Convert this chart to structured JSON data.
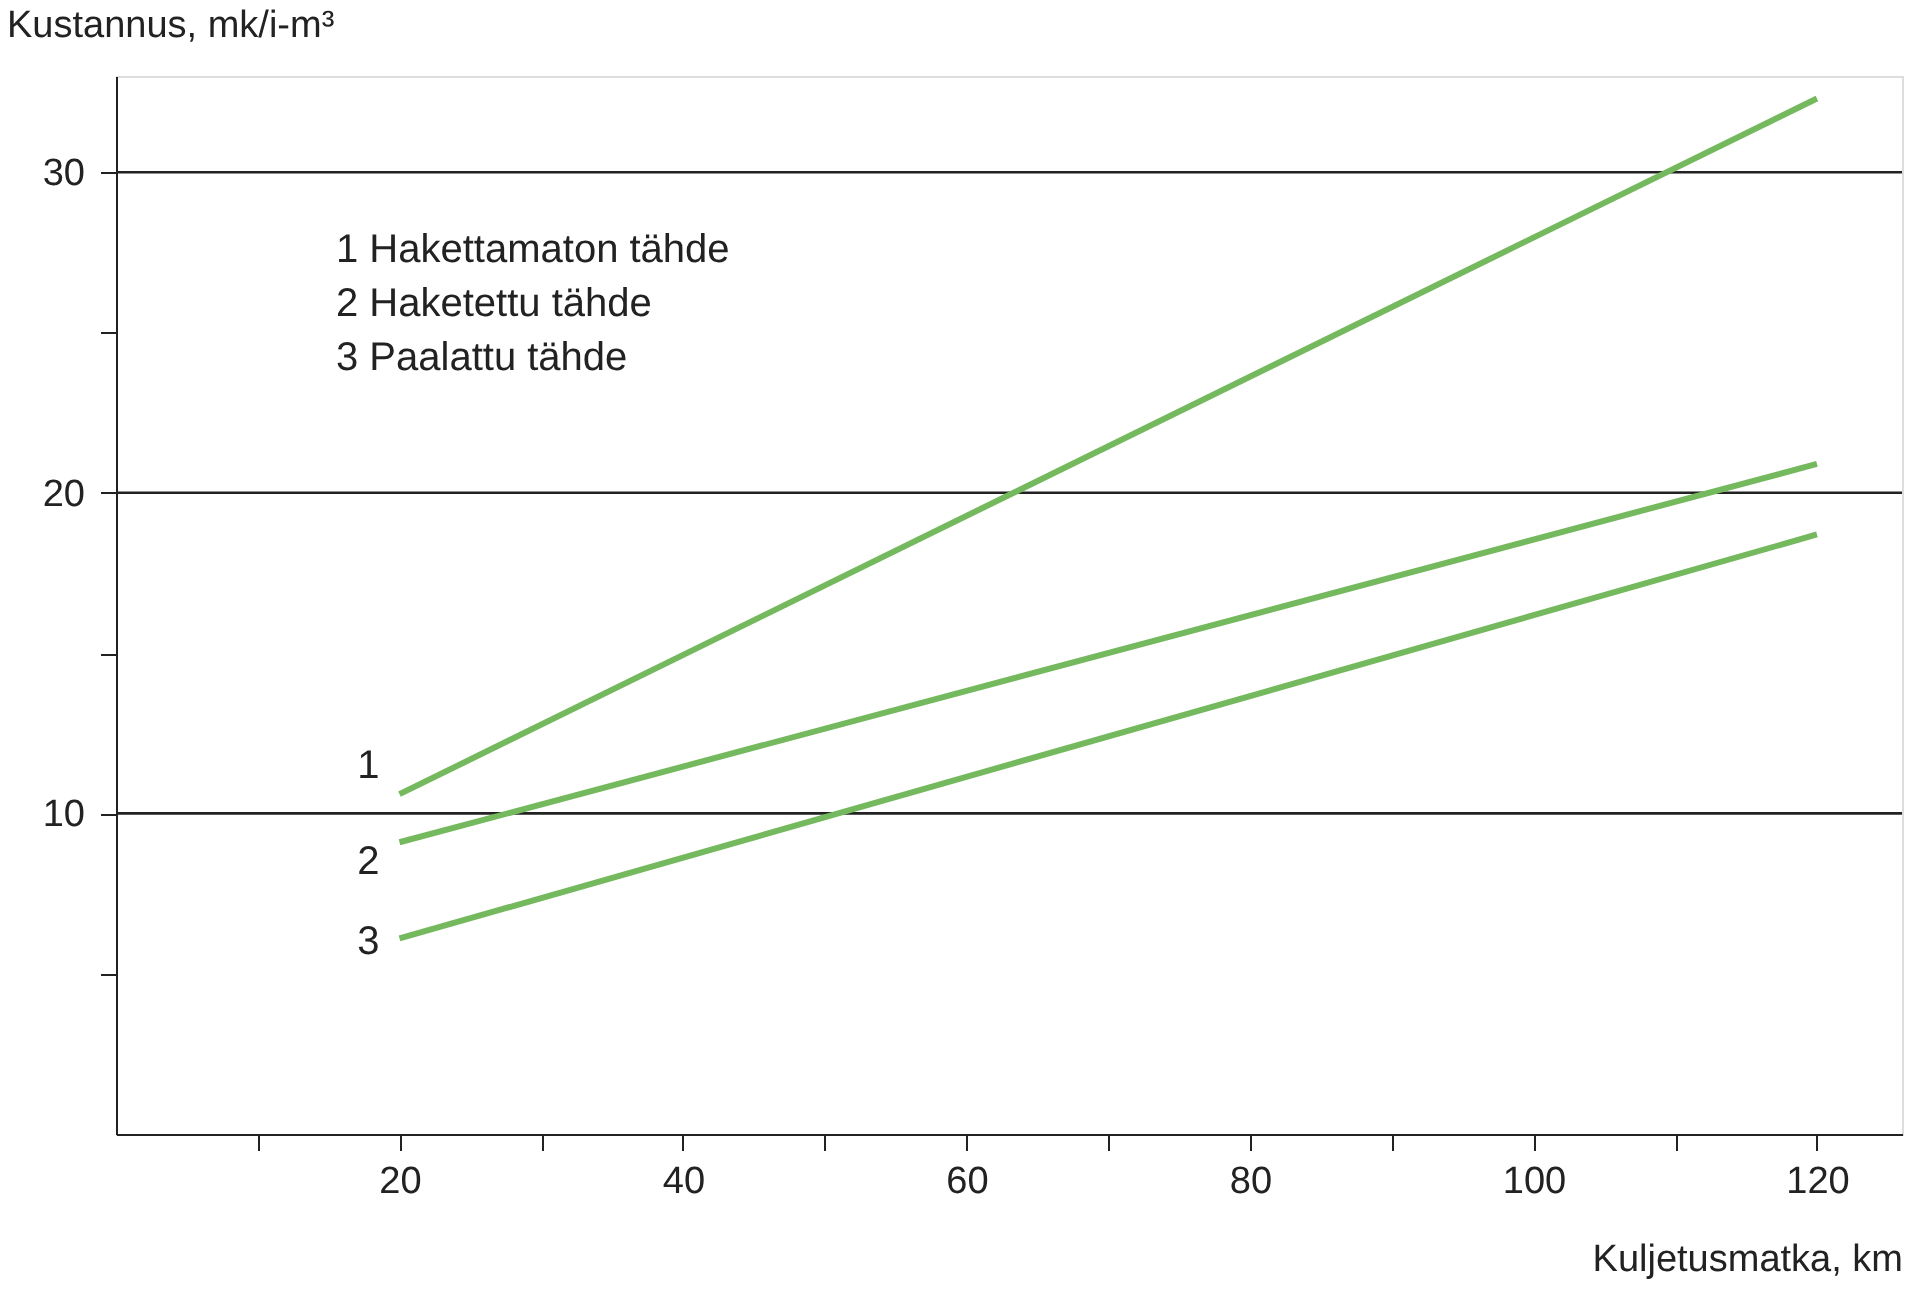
{
  "chart_data": {
    "type": "line",
    "ylabel": "Kustannus, mk/i-m³",
    "xlabel": "Kuljetusmatka, km",
    "annotations": [
      "1  Hakettamaton tähde",
      "2  Haketettu tähde",
      "3  Paalattu tähde"
    ],
    "x": [
      20,
      120
    ],
    "series": [
      {
        "name": "1",
        "color": "#74b95e",
        "values": [
          10.6,
          32.3
        ]
      },
      {
        "name": "2",
        "color": "#74b95e",
        "values": [
          9.1,
          20.9
        ]
      },
      {
        "name": "3",
        "color": "#74b95e",
        "values": [
          6.1,
          18.7
        ]
      }
    ],
    "xlim": [
      0,
      126
    ],
    "ylim": [
      0,
      33
    ],
    "xticks": [
      {
        "value": 10,
        "label": null
      },
      20,
      {
        "value": 30,
        "label": null
      },
      40,
      {
        "value": 50,
        "label": null
      },
      60,
      {
        "value": 70,
        "label": null
      },
      80,
      {
        "value": 90,
        "label": null
      },
      100,
      {
        "value": 110,
        "label": null
      },
      120
    ],
    "yticks": [
      {
        "value": 5,
        "label": null
      },
      10,
      {
        "value": 15,
        "label": null
      },
      20,
      {
        "value": 25,
        "label": null
      },
      30
    ],
    "grid": "y",
    "legend": false,
    "marker": "none",
    "line_style": "solid"
  }
}
